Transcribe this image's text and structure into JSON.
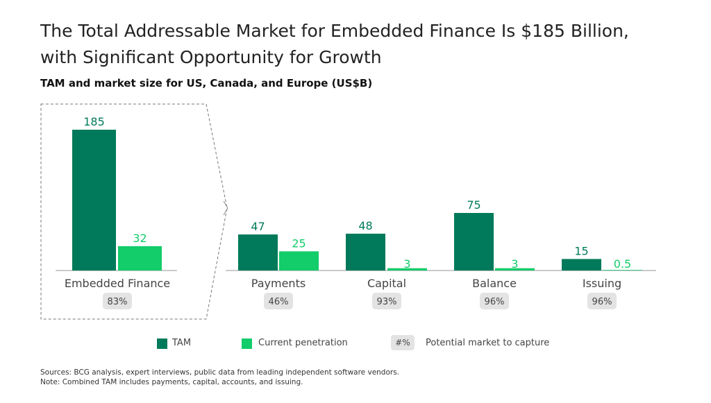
{
  "title_line1": "The Total Addressable Market for Embedded Finance Is $185 Billion,",
  "title_line2": "with Significant Opportunity for Growth",
  "subtitle": "TAM and market size for US, Canada, and Europe (US$B)",
  "colors": {
    "tam": "#007a5a",
    "current": "#13cc6a",
    "pill": "#e3e3e3"
  },
  "legend": {
    "tam": "TAM",
    "current": "Current penetration",
    "pill": "#%",
    "potential": "Potential market to capture"
  },
  "chart_data": {
    "type": "bar",
    "categories": [
      "Embedded Finance",
      "Payments",
      "Capital",
      "Balance",
      "Issuing"
    ],
    "series": [
      {
        "name": "TAM",
        "values": [
          185,
          47,
          48,
          75,
          15
        ],
        "labels": [
          "185",
          "47",
          "48",
          "75",
          "15"
        ]
      },
      {
        "name": "Current penetration",
        "values": [
          32,
          25,
          3,
          3,
          0.5
        ],
        "labels": [
          "32",
          "25",
          "3",
          "3",
          "0.5"
        ]
      }
    ],
    "potential_labels": [
      "83%",
      "46%",
      "93%",
      "96%",
      "96%"
    ]
  },
  "sources": [
    "Sources: BCG analysis, expert interviews, public data from leading independent software vendors.",
    "Note: Combined TAM includes payments, capital, accounts, and issuing."
  ]
}
